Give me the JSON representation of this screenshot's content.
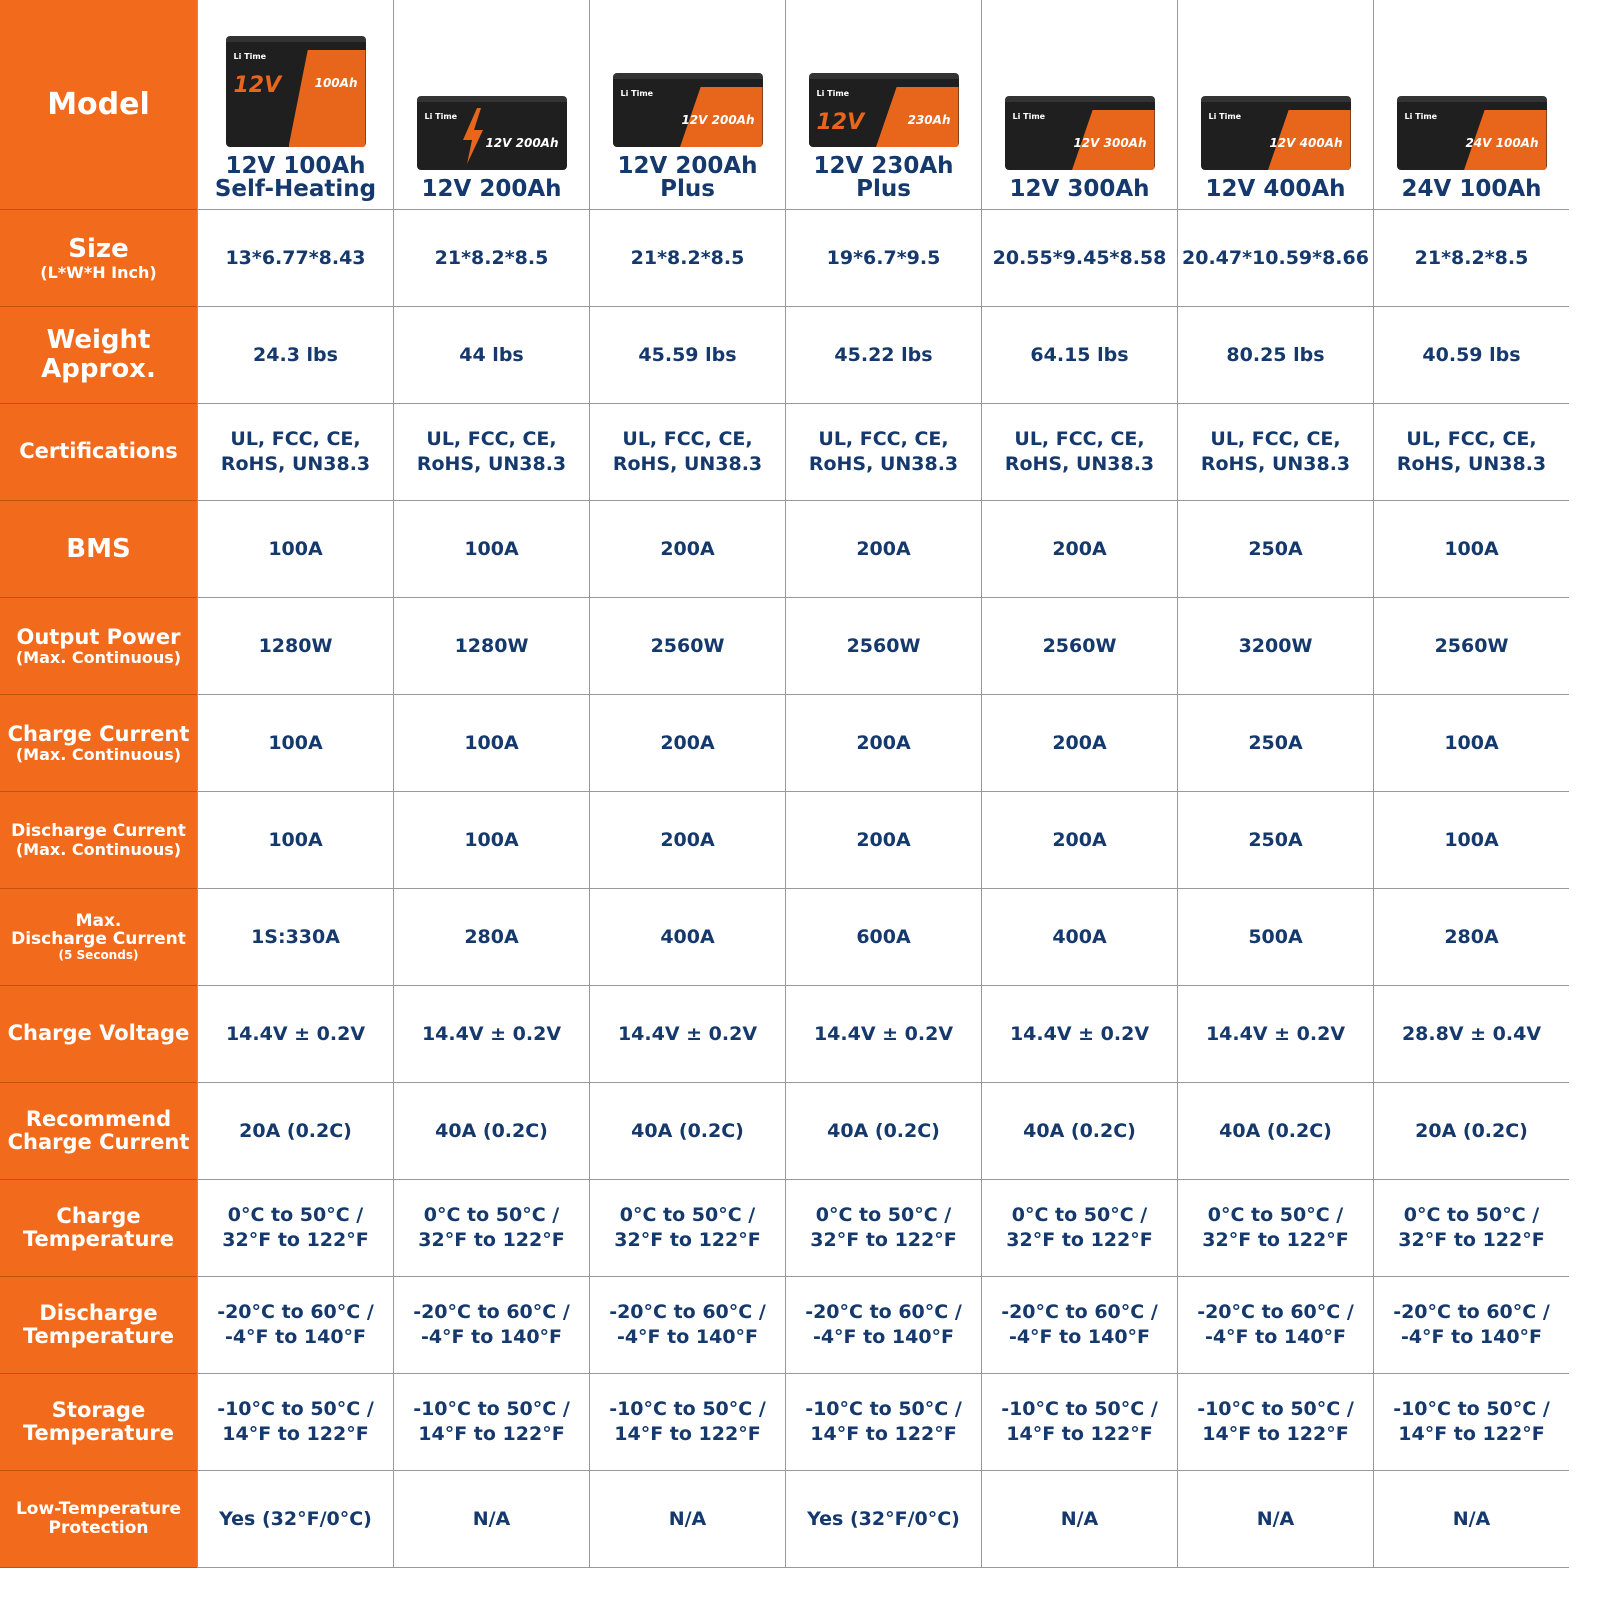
{
  "colors": {
    "label_bg": "#f26b1d",
    "value_text": "#15396c",
    "battery_body": "#1f1f1f",
    "battery_accent": "#e8651c"
  },
  "header": {
    "label": "Model",
    "brand_logo": "Li Time"
  },
  "models": [
    {
      "name": "12V 100Ah\nSelf-Heating",
      "volt": "12V",
      "cap": "100Ah",
      "style": "tall"
    },
    {
      "name": "12V 200Ah",
      "volt": "",
      "cap": "12V 200Ah",
      "style": "bolt"
    },
    {
      "name": "12V 200Ah\nPlus",
      "volt": "",
      "cap": "12V 200Ah",
      "style": "panel"
    },
    {
      "name": "12V 230Ah\nPlus",
      "volt": "12V",
      "cap": "230Ah",
      "style": "panel"
    },
    {
      "name": "12V 300Ah",
      "volt": "",
      "cap": "12V 300Ah",
      "style": "panel"
    },
    {
      "name": "12V 400Ah",
      "volt": "",
      "cap": "12V 400Ah",
      "style": "panel"
    },
    {
      "name": "24V 100Ah",
      "volt": "",
      "cap": "24V 100Ah",
      "style": "panel"
    }
  ],
  "rows": [
    {
      "label": "Size",
      "sub": "(L*W*H Inch)",
      "values": [
        "13*6.77*8.43",
        "21*8.2*8.5",
        "21*8.2*8.5",
        "19*6.7*9.5",
        "20.55*9.45*8.58",
        "20.47*10.59*8.66",
        "21*8.2*8.5"
      ]
    },
    {
      "label": "Weight\nApprox.",
      "sub": "",
      "values": [
        "24.3 lbs",
        "44 lbs",
        "45.59 lbs",
        "45.22 lbs",
        "64.15 lbs",
        "80.25 lbs",
        "40.59 lbs"
      ]
    },
    {
      "label": "Certifications",
      "sub": "",
      "size": "sm",
      "values": [
        "UL, FCC, CE,\nRoHS, UN38.3",
        "UL, FCC, CE,\nRoHS, UN38.3",
        "UL, FCC, CE,\nRoHS, UN38.3",
        "UL, FCC, CE,\nRoHS, UN38.3",
        "UL, FCC, CE,\nRoHS, UN38.3",
        "UL, FCC, CE,\nRoHS, UN38.3",
        "UL, FCC, CE,\nRoHS, UN38.3"
      ]
    },
    {
      "label": "BMS",
      "sub": "",
      "values": [
        "100A",
        "100A",
        "200A",
        "200A",
        "200A",
        "250A",
        "100A"
      ]
    },
    {
      "label": "Output Power",
      "sub": "(Max. Continuous)",
      "size": "sm",
      "values": [
        "1280W",
        "1280W",
        "2560W",
        "2560W",
        "2560W",
        "3200W",
        "2560W"
      ]
    },
    {
      "label": "Charge Current",
      "sub": "(Max. Continuous)",
      "size": "sm",
      "values": [
        "100A",
        "100A",
        "200A",
        "200A",
        "200A",
        "250A",
        "100A"
      ]
    },
    {
      "label": "Discharge Current",
      "sub": "(Max. Continuous)",
      "size": "xs",
      "values": [
        "100A",
        "100A",
        "200A",
        "200A",
        "200A",
        "250A",
        "100A"
      ]
    },
    {
      "label": "Max.\nDischarge Current",
      "sub": "(5 Seconds)",
      "size": "xs",
      "subsize": "xs",
      "values": [
        "1S:330A",
        "280A",
        "400A",
        "600A",
        "400A",
        "500A",
        "280A"
      ]
    },
    {
      "label": "Charge Voltage",
      "sub": "",
      "size": "sm",
      "values": [
        "14.4V ± 0.2V",
        "14.4V ± 0.2V",
        "14.4V ± 0.2V",
        "14.4V ± 0.2V",
        "14.4V ± 0.2V",
        "14.4V ± 0.2V",
        "28.8V ± 0.4V"
      ]
    },
    {
      "label": "Recommend\nCharge Current",
      "sub": "",
      "size": "sm",
      "values": [
        "20A (0.2C)",
        "40A (0.2C)",
        "40A (0.2C)",
        "40A (0.2C)",
        "40A (0.2C)",
        "40A (0.2C)",
        "20A (0.2C)"
      ]
    },
    {
      "label": "Charge\nTemperature",
      "sub": "",
      "size": "sm",
      "values": [
        "0°C to 50°C /\n32°F to 122°F",
        "0°C to 50°C /\n32°F to 122°F",
        "0°C to 50°C /\n32°F to 122°F",
        "0°C to 50°C /\n32°F to 122°F",
        "0°C to 50°C /\n32°F to 122°F",
        "0°C to 50°C /\n32°F to 122°F",
        "0°C to 50°C /\n32°F to 122°F"
      ]
    },
    {
      "label": "Discharge\nTemperature",
      "sub": "",
      "size": "sm",
      "values": [
        "-20°C to 60°C /\n-4°F to 140°F",
        "-20°C to 60°C /\n-4°F to 140°F",
        "-20°C to 60°C /\n-4°F to 140°F",
        "-20°C to 60°C /\n-4°F to 140°F",
        "-20°C to 60°C /\n-4°F to 140°F",
        "-20°C to 60°C /\n-4°F to 140°F",
        "-20°C to 60°C /\n-4°F to 140°F"
      ]
    },
    {
      "label": "Storage\nTemperature",
      "sub": "",
      "size": "sm",
      "values": [
        "-10°C to 50°C /\n14°F to 122°F",
        "-10°C to 50°C /\n14°F to 122°F",
        "-10°C to 50°C /\n14°F to 122°F",
        "-10°C to 50°C /\n14°F to 122°F",
        "-10°C to 50°C /\n14°F to 122°F",
        "-10°C to 50°C /\n14°F to 122°F",
        "-10°C to 50°C /\n14°F to 122°F"
      ]
    },
    {
      "label": "Low-Temperature\nProtection",
      "sub": "",
      "size": "xs",
      "values": [
        "Yes (32°F/0°C)",
        "N/A",
        "N/A",
        "Yes (32°F/0°C)",
        "N/A",
        "N/A",
        "N/A"
      ]
    }
  ]
}
